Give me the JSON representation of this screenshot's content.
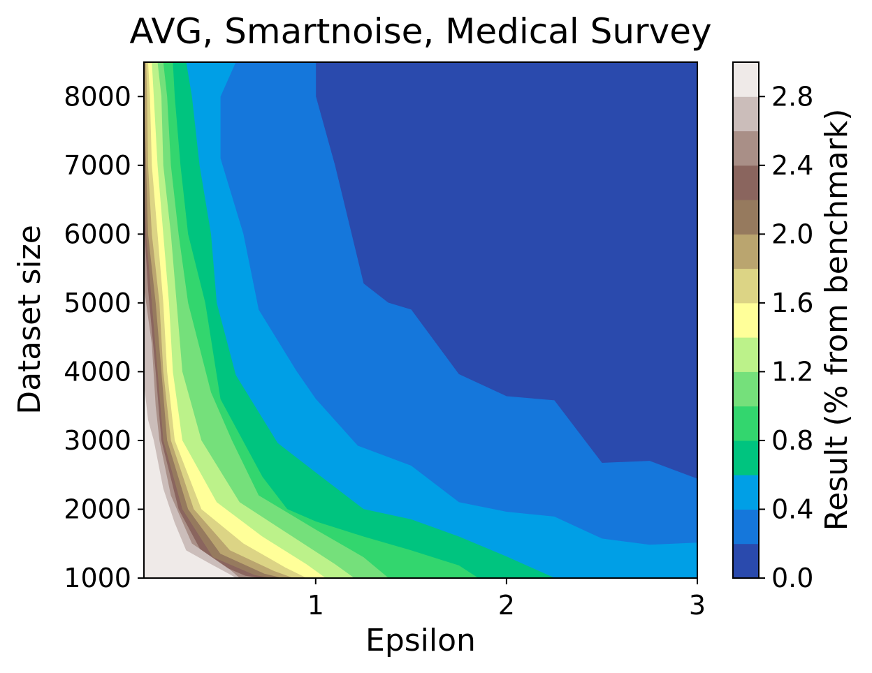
{
  "chart_data": {
    "type": "heatmap",
    "subtype": "filled-contour",
    "title": "AVG, Smartnoise, Medical Survey",
    "xlabel": "Epsilon",
    "ylabel": "Dataset size",
    "xlim": [
      0.1,
      3.0
    ],
    "ylim": [
      1000,
      8500
    ],
    "xticks": [
      1,
      2,
      3
    ],
    "xtick_labels": [
      "1",
      "2",
      "3"
    ],
    "yticks": [
      1000,
      2000,
      3000,
      4000,
      5000,
      6000,
      7000,
      8000
    ],
    "ytick_labels": [
      "1000",
      "2000",
      "3000",
      "4000",
      "5000",
      "6000",
      "7000",
      "8000"
    ],
    "grid": false,
    "colorbar": {
      "label": "Result (% from benchmark)",
      "range": [
        0.0,
        3.0
      ],
      "ticks": [
        0.0,
        0.4,
        0.8,
        1.2,
        1.6,
        2.0,
        2.4,
        2.8
      ],
      "tick_labels": [
        "0.0",
        "0.4",
        "0.8",
        "1.2",
        "1.6",
        "2.0",
        "2.4",
        "2.8"
      ],
      "levels": [
        0.0,
        0.2,
        0.4,
        0.6,
        0.8,
        1.0,
        1.2,
        1.4,
        1.6,
        1.8,
        2.0,
        2.2,
        2.4,
        2.6,
        2.8,
        3.0
      ],
      "colors": [
        "#2a4aad",
        "#1577db",
        "#009fe6",
        "#00c47f",
        "#33d66e",
        "#75e07b",
        "#bcf28a",
        "#ffff99",
        "#dcd485",
        "#baa56f",
        "#967a5e",
        "#8a655e",
        "#a98f87",
        "#cbbdba",
        "#efeae8"
      ]
    },
    "contours": [
      {
        "level": 0.2,
        "points": [
          [
            1.0,
            8500
          ],
          [
            1.0,
            8000
          ],
          [
            1.1,
            7000
          ],
          [
            1.25,
            5280
          ],
          [
            1.38,
            5000
          ],
          [
            1.5,
            4900
          ],
          [
            1.75,
            3960
          ],
          [
            2.0,
            3640
          ],
          [
            2.25,
            3580
          ],
          [
            2.5,
            2670
          ],
          [
            2.75,
            2700
          ],
          [
            3.0,
            2440
          ]
        ]
      },
      {
        "level": 0.4,
        "points": [
          [
            0.58,
            8500
          ],
          [
            0.5,
            8000
          ],
          [
            0.5,
            7100
          ],
          [
            0.62,
            6000
          ],
          [
            0.7,
            4900
          ],
          [
            0.9,
            4000
          ],
          [
            1.0,
            3600
          ],
          [
            1.22,
            2920
          ],
          [
            1.5,
            2630
          ],
          [
            1.75,
            2100
          ],
          [
            2.0,
            1960
          ],
          [
            2.25,
            1890
          ],
          [
            2.5,
            1570
          ],
          [
            2.75,
            1480
          ],
          [
            3.0,
            1510
          ]
        ]
      },
      {
        "level": 0.6,
        "points": [
          [
            0.32,
            8500
          ],
          [
            0.35,
            8000
          ],
          [
            0.39,
            7000
          ],
          [
            0.45,
            6000
          ],
          [
            0.48,
            5000
          ],
          [
            0.58,
            3950
          ],
          [
            0.8,
            2960
          ],
          [
            1.0,
            2530
          ],
          [
            1.25,
            2000
          ],
          [
            1.5,
            1850
          ],
          [
            1.75,
            1600
          ],
          [
            2.0,
            1310
          ],
          [
            2.25,
            1000
          ]
        ]
      },
      {
        "level": 0.8,
        "points": [
          [
            0.25,
            8500
          ],
          [
            0.26,
            8000
          ],
          [
            0.29,
            7000
          ],
          [
            0.33,
            6000
          ],
          [
            0.42,
            5000
          ],
          [
            0.5,
            3600
          ],
          [
            0.72,
            2470
          ],
          [
            0.85,
            2000
          ],
          [
            1.0,
            1820
          ],
          [
            1.25,
            1600
          ],
          [
            1.5,
            1400
          ],
          [
            1.75,
            1180
          ],
          [
            1.85,
            1000
          ]
        ]
      },
      {
        "level": 1.0,
        "points": [
          [
            0.2,
            8500
          ],
          [
            0.22,
            8000
          ],
          [
            0.24,
            7000
          ],
          [
            0.28,
            6000
          ],
          [
            0.33,
            5000
          ],
          [
            0.45,
            3700
          ],
          [
            0.56,
            3000
          ],
          [
            0.7,
            2200
          ],
          [
            1.0,
            1700
          ],
          [
            1.25,
            1300
          ],
          [
            1.38,
            1000
          ]
        ]
      },
      {
        "level": 1.2,
        "points": [
          [
            0.17,
            8500
          ],
          [
            0.19,
            8000
          ],
          [
            0.2,
            7000
          ],
          [
            0.24,
            6000
          ],
          [
            0.27,
            5000
          ],
          [
            0.3,
            4000
          ],
          [
            0.4,
            3000
          ],
          [
            0.6,
            2100
          ],
          [
            0.85,
            1650
          ],
          [
            1.1,
            1200
          ],
          [
            1.2,
            1000
          ]
        ]
      },
      {
        "level": 1.4,
        "points": [
          [
            0.14,
            8500
          ],
          [
            0.15,
            8000
          ],
          [
            0.17,
            7000
          ],
          [
            0.2,
            6000
          ],
          [
            0.23,
            5000
          ],
          [
            0.25,
            4000
          ],
          [
            0.3,
            3000
          ],
          [
            0.48,
            2100
          ],
          [
            0.72,
            1600
          ],
          [
            0.95,
            1200
          ],
          [
            1.05,
            1000
          ]
        ]
      },
      {
        "level": 1.6,
        "points": [
          [
            0.12,
            8500
          ],
          [
            0.13,
            8000
          ],
          [
            0.14,
            7000
          ],
          [
            0.17,
            6000
          ],
          [
            0.2,
            5000
          ],
          [
            0.22,
            4000
          ],
          [
            0.26,
            3000
          ],
          [
            0.4,
            2000
          ],
          [
            0.62,
            1500
          ],
          [
            0.84,
            1150
          ],
          [
            0.95,
            1000
          ]
        ]
      },
      {
        "level": 1.8,
        "points": [
          [
            0.11,
            8500
          ],
          [
            0.115,
            8000
          ],
          [
            0.12,
            7000
          ],
          [
            0.14,
            6000
          ],
          [
            0.18,
            5000
          ],
          [
            0.2,
            4000
          ],
          [
            0.24,
            3000
          ],
          [
            0.36,
            2000
          ],
          [
            0.55,
            1400
          ],
          [
            0.78,
            1100
          ],
          [
            0.88,
            1000
          ]
        ]
      },
      {
        "level": 2.0,
        "points": [
          [
            0.1,
            8500
          ],
          [
            0.1,
            8000
          ],
          [
            0.11,
            7000
          ],
          [
            0.12,
            6000
          ],
          [
            0.16,
            5000
          ],
          [
            0.19,
            4000
          ],
          [
            0.22,
            3000
          ],
          [
            0.33,
            2000
          ],
          [
            0.5,
            1350
          ],
          [
            0.73,
            1060
          ],
          [
            0.82,
            1000
          ]
        ]
      },
      {
        "level": 2.2,
        "points": [
          [
            0.1,
            6800
          ],
          [
            0.11,
            6000
          ],
          [
            0.14,
            5000
          ],
          [
            0.17,
            4000
          ],
          [
            0.2,
            3000
          ],
          [
            0.3,
            2000
          ],
          [
            0.46,
            1300
          ],
          [
            0.68,
            1040
          ],
          [
            0.76,
            1000
          ]
        ]
      },
      {
        "level": 2.4,
        "points": [
          [
            0.1,
            6100
          ],
          [
            0.12,
            5200
          ],
          [
            0.16,
            4000
          ],
          [
            0.19,
            3000
          ],
          [
            0.28,
            2000
          ],
          [
            0.42,
            1280
          ],
          [
            0.63,
            1030
          ],
          [
            0.7,
            1000
          ]
        ]
      },
      {
        "level": 2.6,
        "points": [
          [
            0.1,
            5200
          ],
          [
            0.14,
            4400
          ],
          [
            0.16,
            3500
          ],
          [
            0.18,
            3000
          ],
          [
            0.24,
            2200
          ],
          [
            0.35,
            1500
          ],
          [
            0.55,
            1120
          ],
          [
            0.6,
            1000
          ]
        ]
      },
      {
        "level": 2.8,
        "points": [
          [
            0.1,
            3800
          ],
          [
            0.12,
            3300
          ],
          [
            0.15,
            3000
          ],
          [
            0.2,
            2300
          ],
          [
            0.26,
            1800
          ],
          [
            0.32,
            1400
          ],
          [
            0.45,
            1200
          ],
          [
            0.55,
            1050
          ],
          [
            0.58,
            1000
          ]
        ]
      }
    ]
  }
}
